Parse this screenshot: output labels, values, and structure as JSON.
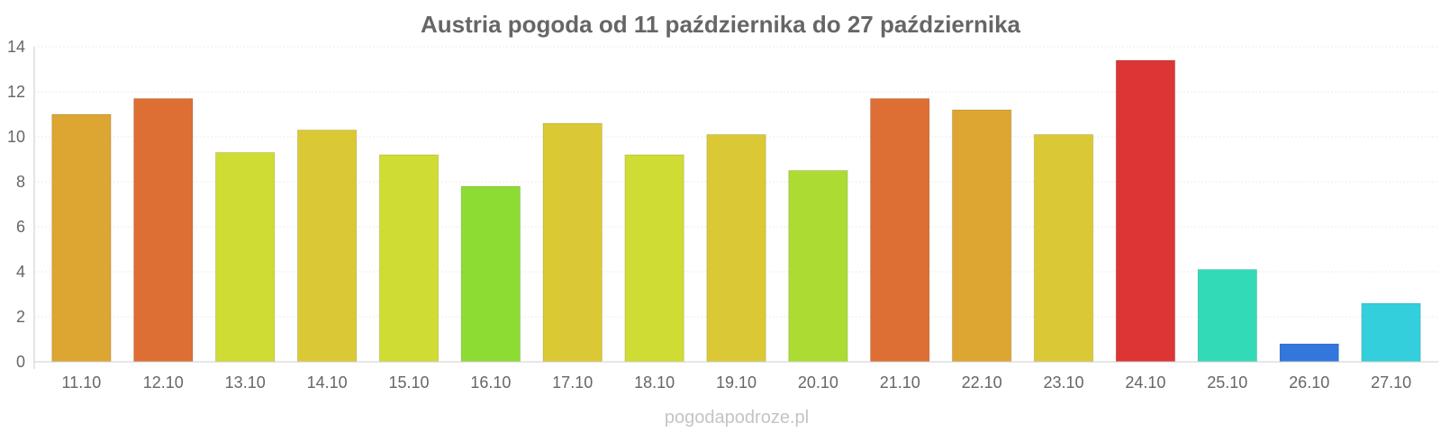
{
  "chart_data": {
    "type": "bar",
    "title": "Austria pogoda od 11 października do 27 października",
    "xlabel": "",
    "ylabel": "",
    "categories": [
      "11.10",
      "12.10",
      "13.10",
      "14.10",
      "15.10",
      "16.10",
      "17.10",
      "18.10",
      "19.10",
      "20.10",
      "21.10",
      "22.10",
      "23.10",
      "24.10",
      "25.10",
      "26.10",
      "27.10"
    ],
    "values": [
      11.0,
      11.7,
      9.3,
      10.3,
      9.2,
      7.8,
      10.6,
      9.2,
      10.1,
      8.5,
      11.7,
      11.2,
      10.1,
      13.4,
      4.1,
      0.8,
      2.6
    ],
    "colors": [
      "#dda632",
      "#dd6f35",
      "#cfdc33",
      "#dac934",
      "#cfdc33",
      "#8ddc33",
      "#dac934",
      "#cfdc33",
      "#dac934",
      "#acdc33",
      "#dd6f35",
      "#dda632",
      "#dac934",
      "#dd3535",
      "#33dab8",
      "#3377dd",
      "#33cfdc"
    ],
    "ylim": [
      0,
      14
    ],
    "yticks": [
      0,
      2,
      4,
      6,
      8,
      10,
      12,
      14
    ],
    "grid": true,
    "legend": "none"
  },
  "watermark": "pogodapodroze.pl"
}
